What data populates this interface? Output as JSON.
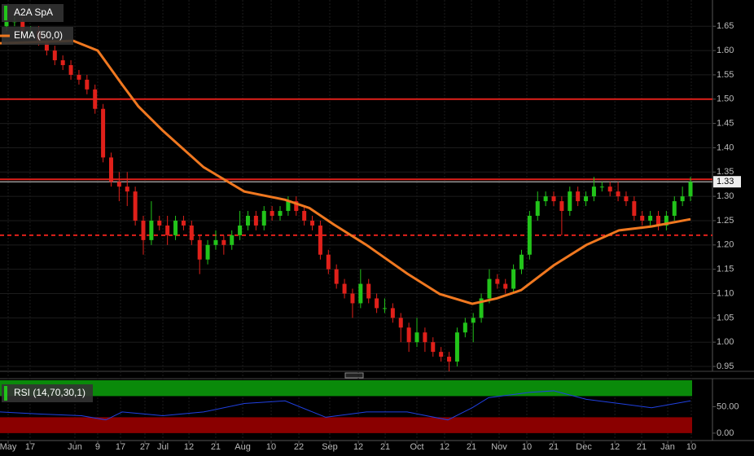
{
  "chart_data": [
    {
      "type": "candlestick",
      "xlim": [
        -0.81,
        87.73
      ],
      "xticks": [
        {
          "value": 0.2,
          "label": "May"
        },
        {
          "value": 2.93,
          "label": "17"
        },
        {
          "value": 8.5,
          "label": "Jun"
        },
        {
          "value": 11.33,
          "label": "9"
        },
        {
          "value": 14.17,
          "label": "17"
        },
        {
          "value": 17.2,
          "label": "27"
        },
        {
          "value": 19.43,
          "label": "Jul"
        },
        {
          "value": 22.67,
          "label": "12"
        },
        {
          "value": 26.0,
          "label": "21"
        },
        {
          "value": 29.35,
          "label": "Aug"
        },
        {
          "value": 32.89,
          "label": "10"
        },
        {
          "value": 36.33,
          "label": "22"
        },
        {
          "value": 40.17,
          "label": "Sep"
        },
        {
          "value": 43.72,
          "label": "12"
        },
        {
          "value": 47.06,
          "label": "21"
        },
        {
          "value": 51.0,
          "label": "Oct"
        },
        {
          "value": 54.44,
          "label": "12"
        },
        {
          "value": 57.78,
          "label": "21"
        },
        {
          "value": 61.22,
          "label": "Nov"
        },
        {
          "value": 64.66,
          "label": "10"
        },
        {
          "value": 68.0,
          "label": "21"
        },
        {
          "value": 71.75,
          "label": "Dec"
        },
        {
          "value": 75.6,
          "label": "12"
        },
        {
          "value": 78.93,
          "label": "21"
        },
        {
          "value": 82.17,
          "label": "Jan"
        },
        {
          "value": 85.1,
          "label": "10"
        }
      ],
      "ylim": [
        0.94,
        1.704
      ],
      "yticks": [
        0.95,
        {
          "value": 1.0,
          "label": "1.00"
        },
        1.05,
        {
          "value": 1.1,
          "label": "1.10"
        },
        1.15,
        {
          "value": 1.2,
          "label": "1.20"
        },
        1.25,
        {
          "value": 1.3,
          "label": "1.30"
        },
        1.35,
        {
          "value": 1.4,
          "label": "1.40"
        },
        1.45,
        {
          "value": 1.5,
          "label": "1.50"
        },
        1.55,
        {
          "value": 1.6,
          "label": "1.60"
        },
        1.65
      ],
      "grid": true,
      "series": [
        {
          "name": "A2A SpA",
          "up_color": "#22c41a",
          "down_color": "#e0201a",
          "open": [
            1.65,
            1.66,
            1.66,
            1.64,
            1.64,
            1.62,
            1.6,
            1.58,
            1.57,
            1.55,
            1.54,
            1.52,
            1.48,
            1.38,
            1.33,
            1.32,
            1.31,
            1.25,
            1.21,
            1.25,
            1.24,
            1.22,
            1.25,
            1.24,
            1.21,
            1.17,
            1.2,
            1.21,
            1.2,
            1.22,
            1.24,
            1.26,
            1.24,
            1.27,
            1.26,
            1.27,
            1.29,
            1.27,
            1.25,
            1.24,
            1.18,
            1.15,
            1.12,
            1.1,
            1.08,
            1.12,
            1.09,
            1.07,
            1.07,
            1.05,
            1.03,
            1.0,
            1.02,
            1.0,
            0.98,
            0.97,
            0.96,
            1.02,
            1.04,
            1.05,
            1.09,
            1.13,
            1.12,
            1.11,
            1.15,
            1.18,
            1.26,
            1.29,
            1.3,
            1.29,
            1.27,
            1.31,
            1.29,
            1.3,
            1.32,
            1.32,
            1.31,
            1.3,
            1.29,
            1.26,
            1.25,
            1.26,
            1.24,
            1.26,
            1.29,
            1.3
          ],
          "high": [
            1.67,
            1.67,
            1.67,
            1.65,
            1.65,
            1.63,
            1.61,
            1.59,
            1.58,
            1.56,
            1.55,
            1.53,
            1.49,
            1.39,
            1.35,
            1.35,
            1.32,
            1.26,
            1.29,
            1.26,
            1.26,
            1.26,
            1.26,
            1.25,
            1.22,
            1.21,
            1.23,
            1.22,
            1.23,
            1.27,
            1.27,
            1.27,
            1.28,
            1.28,
            1.28,
            1.3,
            1.3,
            1.28,
            1.26,
            1.25,
            1.19,
            1.16,
            1.13,
            1.11,
            1.15,
            1.13,
            1.1,
            1.09,
            1.08,
            1.06,
            1.04,
            1.05,
            1.03,
            1.01,
            0.99,
            0.98,
            1.03,
            1.05,
            1.06,
            1.1,
            1.15,
            1.14,
            1.13,
            1.16,
            1.19,
            1.27,
            1.31,
            1.31,
            1.31,
            1.3,
            1.32,
            1.32,
            1.31,
            1.34,
            1.33,
            1.33,
            1.33,
            1.31,
            1.3,
            1.27,
            1.27,
            1.27,
            1.27,
            1.3,
            1.32,
            1.34
          ],
          "low": [
            1.64,
            1.65,
            1.63,
            1.63,
            1.61,
            1.59,
            1.57,
            1.56,
            1.54,
            1.53,
            1.51,
            1.47,
            1.37,
            1.32,
            1.29,
            1.28,
            1.24,
            1.18,
            1.2,
            1.23,
            1.2,
            1.21,
            1.23,
            1.2,
            1.14,
            1.16,
            1.19,
            1.18,
            1.19,
            1.21,
            1.23,
            1.23,
            1.23,
            1.25,
            1.25,
            1.26,
            1.26,
            1.24,
            1.23,
            1.17,
            1.14,
            1.11,
            1.09,
            1.05,
            1.07,
            1.08,
            1.06,
            1.06,
            1.04,
            1.0,
            0.98,
            0.99,
            0.98,
            0.97,
            0.96,
            0.94,
            0.95,
            1.01,
            1.0,
            1.04,
            1.08,
            1.11,
            1.1,
            1.1,
            1.14,
            1.17,
            1.25,
            1.28,
            1.28,
            1.22,
            1.26,
            1.28,
            1.28,
            1.29,
            1.31,
            1.3,
            1.29,
            1.28,
            1.25,
            1.24,
            1.24,
            1.23,
            1.23,
            1.25,
            1.28,
            1.29
          ],
          "close": [
            1.66,
            1.66,
            1.64,
            1.64,
            1.62,
            1.6,
            1.58,
            1.57,
            1.55,
            1.54,
            1.52,
            1.48,
            1.38,
            1.33,
            1.32,
            1.31,
            1.25,
            1.21,
            1.25,
            1.24,
            1.22,
            1.25,
            1.24,
            1.21,
            1.17,
            1.2,
            1.21,
            1.2,
            1.22,
            1.24,
            1.26,
            1.24,
            1.27,
            1.26,
            1.27,
            1.29,
            1.27,
            1.25,
            1.24,
            1.18,
            1.15,
            1.12,
            1.1,
            1.08,
            1.12,
            1.09,
            1.07,
            1.07,
            1.05,
            1.03,
            1.0,
            1.02,
            1.0,
            0.98,
            0.97,
            0.96,
            1.02,
            1.04,
            1.05,
            1.09,
            1.13,
            1.12,
            1.11,
            1.15,
            1.18,
            1.26,
            1.29,
            1.3,
            1.29,
            1.27,
            1.31,
            1.29,
            1.3,
            1.32,
            1.32,
            1.31,
            1.3,
            1.29,
            1.26,
            1.25,
            1.26,
            1.24,
            1.26,
            1.29,
            1.3,
            1.33
          ]
        },
        {
          "name": "EMA (50,0)",
          "type": "line",
          "color": "#f07820",
          "x": [
            -0.81,
            8.3,
            11.33,
            14.37,
            16.39,
            19.43,
            24.49,
            29.55,
            34.61,
            37.64,
            40.68,
            44.73,
            49.79,
            53.84,
            57.88,
            60.92,
            63.95,
            68.0,
            72.05,
            76.1,
            80.15,
            85.0
          ],
          "values": [
            1.615,
            1.62,
            1.6,
            1.53,
            1.485,
            1.435,
            1.36,
            1.31,
            1.293,
            1.276,
            1.242,
            1.2,
            1.141,
            1.099,
            1.079,
            1.09,
            1.107,
            1.158,
            1.2,
            1.23,
            1.238,
            1.253
          ]
        }
      ],
      "hlines": [
        {
          "value": 1.5,
          "color": "#e0201a"
        },
        {
          "value": 1.335,
          "color": "#e0201a"
        },
        {
          "value": 1.22,
          "color": "#e0201a",
          "dashed": true
        }
      ],
      "last_price": 1.33
    },
    {
      "type": "line",
      "xlim": [
        -0.81,
        87.73
      ],
      "ylim": [
        -14,
        103
      ],
      "yticks": [
        {
          "value": 50,
          "label": "50.00"
        },
        {
          "value": 0,
          "label": "0.00"
        }
      ],
      "overbought": 70,
      "oversold": 30,
      "series": [
        {
          "name": "RSI (14,70,30,1)",
          "color": "#2040e0",
          "x": [
            -0.81,
            4.25,
            9.31,
            12.35,
            14.37,
            19.43,
            24.49,
            29.55,
            34.61,
            39.67,
            44.73,
            49.79,
            54.85,
            57.88,
            59.91,
            64.97,
            68.0,
            72.05,
            76.1,
            80.15,
            85.0
          ],
          "values": [
            40,
            36,
            33,
            25,
            40,
            33,
            40,
            56,
            61,
            30,
            40,
            40,
            25,
            48,
            67,
            77,
            80,
            64,
            56,
            48,
            61
          ]
        }
      ]
    }
  ]
}
